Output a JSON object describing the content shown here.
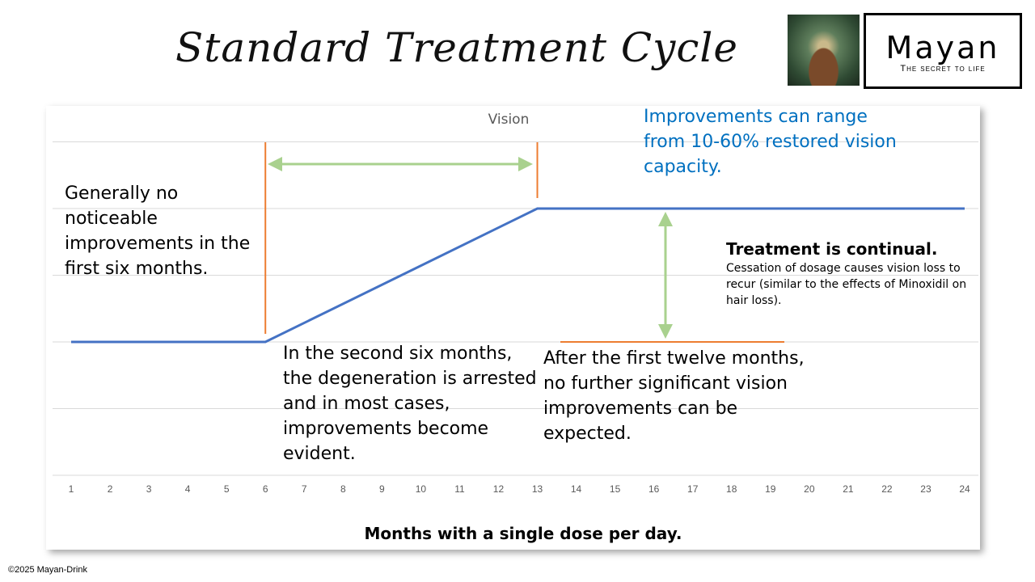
{
  "title": "Standard Treatment Cycle",
  "logo": {
    "brand": "Mayan",
    "tagline": "The secret to life"
  },
  "footer": "©2025 Mayan-Drink",
  "annotations": {
    "first_six": "Generally no noticeable improvements in the first six months.",
    "second_six": "In the second six months, the degeneration is arrested and in most cases, improvements become evident.",
    "range": "Improvements can range from 10-60% restored vision capacity.",
    "continual_head": "Treatment is continual.",
    "continual_body": "Cessation of dosage causes vision loss to recur (similar to the effects of Minoxidil on hair loss).",
    "after_twelve": "After the first twelve months, no further significant vision improvements can be expected."
  },
  "colors": {
    "line": "#4472c4",
    "orange": "#ed7d31",
    "green": "#a9d18e",
    "blue_text": "#0070c0",
    "grid": "#d9d9d9"
  },
  "chart_data": {
    "type": "line",
    "series_label": "Vision",
    "xlabel": "Months with a single dose per day.",
    "x": [
      1,
      2,
      3,
      4,
      5,
      6,
      7,
      8,
      9,
      10,
      11,
      12,
      13,
      14,
      15,
      16,
      17,
      18,
      19,
      20,
      21,
      22,
      23,
      24
    ],
    "points": [
      [
        1,
        2
      ],
      [
        6,
        2
      ],
      [
        13,
        4
      ],
      [
        24,
        4
      ]
    ],
    "ylim": [
      0,
      5.5
    ],
    "grid": true,
    "y_gridlines": [
      0,
      1,
      2,
      3,
      4,
      5
    ]
  }
}
